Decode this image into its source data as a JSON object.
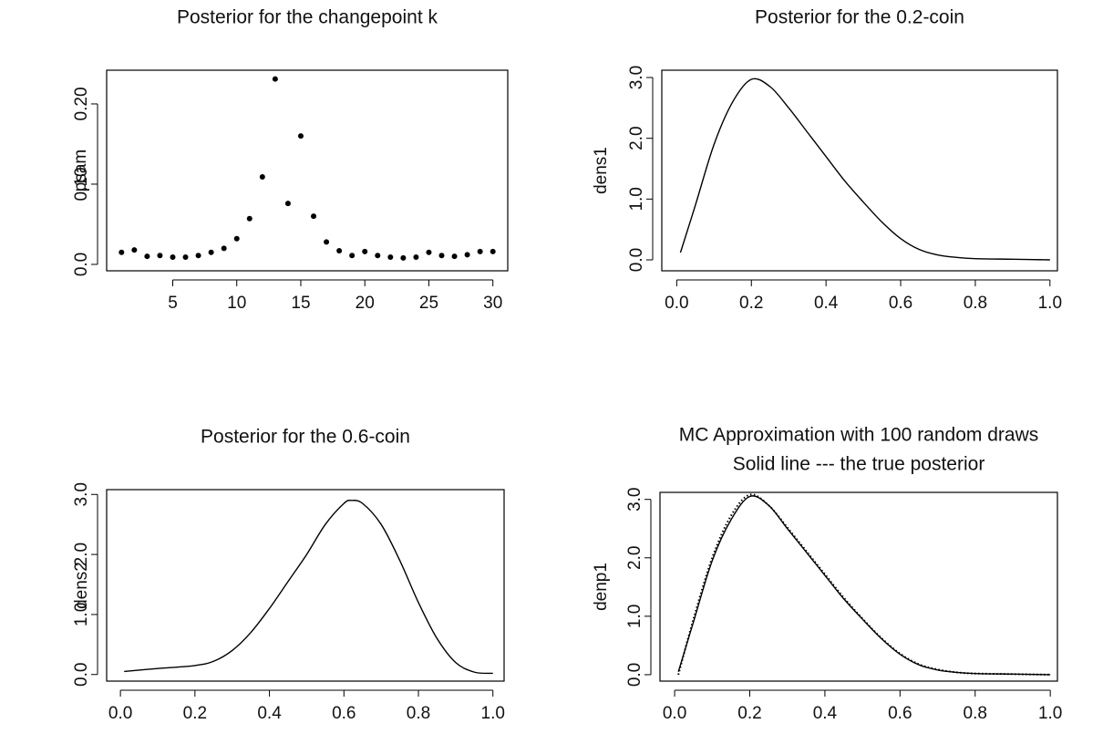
{
  "chart_data": [
    {
      "type": "scatter",
      "title": "Posterior for the changepoint k",
      "ylabel": "psam",
      "x": [
        1,
        2,
        3,
        4,
        5,
        6,
        7,
        8,
        9,
        10,
        11,
        12,
        13,
        14,
        15,
        16,
        17,
        18,
        19,
        20,
        21,
        22,
        23,
        24,
        25,
        26,
        27,
        28,
        29,
        30
      ],
      "values": [
        0.015,
        0.018,
        0.01,
        0.011,
        0.009,
        0.009,
        0.011,
        0.015,
        0.02,
        0.032,
        0.057,
        0.109,
        0.231,
        0.076,
        0.16,
        0.06,
        0.028,
        0.017,
        0.011,
        0.016,
        0.011,
        0.009,
        0.008,
        0.009,
        0.015,
        0.011,
        0.01,
        0.012,
        0.016,
        0.016
      ],
      "color": "#000000",
      "xlim": [
        -0.16,
        31.16
      ],
      "xticks": [
        5,
        10,
        15,
        20,
        25,
        30
      ],
      "ylim": [
        -0.008,
        0.242
      ],
      "yticks": [
        {
          "value": 0,
          "label": "0.0"
        },
        {
          "value": 0.1,
          "label": "0.10"
        },
        {
          "value": 0.2,
          "label": "0.20"
        }
      ]
    },
    {
      "type": "line",
      "title": "Posterior for the 0.2-coin",
      "ylabel": "dens1",
      "x": [
        0.01,
        0.05,
        0.1,
        0.15,
        0.2,
        0.25,
        0.3,
        0.35,
        0.4,
        0.45,
        0.5,
        0.55,
        0.6,
        0.65,
        0.7,
        0.75,
        0.8,
        0.9,
        1.0
      ],
      "values": [
        0.12,
        0.9,
        1.9,
        2.6,
        2.97,
        2.85,
        2.5,
        2.1,
        1.7,
        1.3,
        0.95,
        0.62,
        0.35,
        0.17,
        0.08,
        0.04,
        0.02,
        0.01,
        0.0
      ],
      "color": "#000000",
      "xlim": [
        -0.04,
        1.02
      ],
      "xticks": [
        {
          "value": 0,
          "label": "0.0"
        },
        {
          "value": 0.2,
          "label": "0.2"
        },
        {
          "value": 0.4,
          "label": "0.4"
        },
        {
          "value": 0.6,
          "label": "0.6"
        },
        {
          "value": 0.8,
          "label": "0.8"
        },
        {
          "value": 1,
          "label": "1.0"
        }
      ],
      "ylim": [
        -0.18,
        3.12
      ],
      "yticks": [
        {
          "value": 0,
          "label": "0.0"
        },
        {
          "value": 1,
          "label": "1.0"
        },
        {
          "value": 2,
          "label": "2.0"
        },
        {
          "value": 3,
          "label": "3.0"
        }
      ]
    },
    {
      "type": "line",
      "title": "Posterior for the 0.6-coin",
      "ylabel": "dens2",
      "x": [
        0.01,
        0.1,
        0.2,
        0.25,
        0.3,
        0.35,
        0.4,
        0.45,
        0.5,
        0.55,
        0.6,
        0.62,
        0.65,
        0.7,
        0.75,
        0.8,
        0.85,
        0.9,
        0.95,
        1.0
      ],
      "values": [
        0.05,
        0.1,
        0.15,
        0.22,
        0.4,
        0.7,
        1.1,
        1.55,
        2.0,
        2.5,
        2.85,
        2.9,
        2.85,
        2.5,
        1.9,
        1.2,
        0.6,
        0.2,
        0.04,
        0.02
      ],
      "color": "#000000",
      "xlim": [
        -0.037,
        1.03
      ],
      "xticks": [
        {
          "value": 0,
          "label": "0.0"
        },
        {
          "value": 0.2,
          "label": "0.2"
        },
        {
          "value": 0.4,
          "label": "0.4"
        },
        {
          "value": 0.6,
          "label": "0.6"
        },
        {
          "value": 0.8,
          "label": "0.8"
        },
        {
          "value": 1,
          "label": "1.0"
        }
      ],
      "ylim": [
        -0.11,
        3.08
      ],
      "yticks": [
        {
          "value": 0,
          "label": "0.0"
        },
        {
          "value": 1,
          "label": "1.0"
        },
        {
          "value": 2,
          "label": "2.0"
        },
        {
          "value": 3,
          "label": "3.0"
        }
      ]
    },
    {
      "type": "line",
      "title": "MC Approximation with 100 random draws",
      "subtitle": "Solid line --- the true posterior",
      "ylabel": "denp1",
      "x": [
        0.01,
        0.05,
        0.1,
        0.15,
        0.2,
        0.25,
        0.3,
        0.35,
        0.4,
        0.45,
        0.5,
        0.55,
        0.6,
        0.65,
        0.7,
        0.75,
        0.8,
        0.9,
        1.0
      ],
      "series": [
        {
          "color": "#000000",
          "dashed": false,
          "values": [
            0.05,
            0.9,
            1.95,
            2.65,
            3.05,
            2.9,
            2.5,
            2.1,
            1.7,
            1.3,
            0.95,
            0.62,
            0.35,
            0.17,
            0.08,
            0.04,
            0.02,
            0.01,
            0.0
          ]
        },
        {
          "color": "#000000",
          "dashed": true,
          "values": [
            0.0,
            0.95,
            2.0,
            2.72,
            3.08,
            2.9,
            2.52,
            2.12,
            1.72,
            1.32,
            0.96,
            0.63,
            0.36,
            0.18,
            0.09,
            0.04,
            0.02,
            0.01,
            0.0
          ]
        }
      ],
      "xlim": [
        -0.039,
        1.019
      ],
      "xticks": [
        {
          "value": 0,
          "label": "0.0"
        },
        {
          "value": 0.2,
          "label": "0.2"
        },
        {
          "value": 0.4,
          "label": "0.4"
        },
        {
          "value": 0.6,
          "label": "0.6"
        },
        {
          "value": 0.8,
          "label": "0.8"
        },
        {
          "value": 1,
          "label": "1.0"
        }
      ],
      "ylim": [
        -0.11,
        3.12
      ],
      "yticks": [
        {
          "value": 0,
          "label": "0.0"
        },
        {
          "value": 1,
          "label": "1.0"
        },
        {
          "value": 2,
          "label": "2.0"
        },
        {
          "value": 3,
          "label": "3.0"
        }
      ]
    }
  ]
}
